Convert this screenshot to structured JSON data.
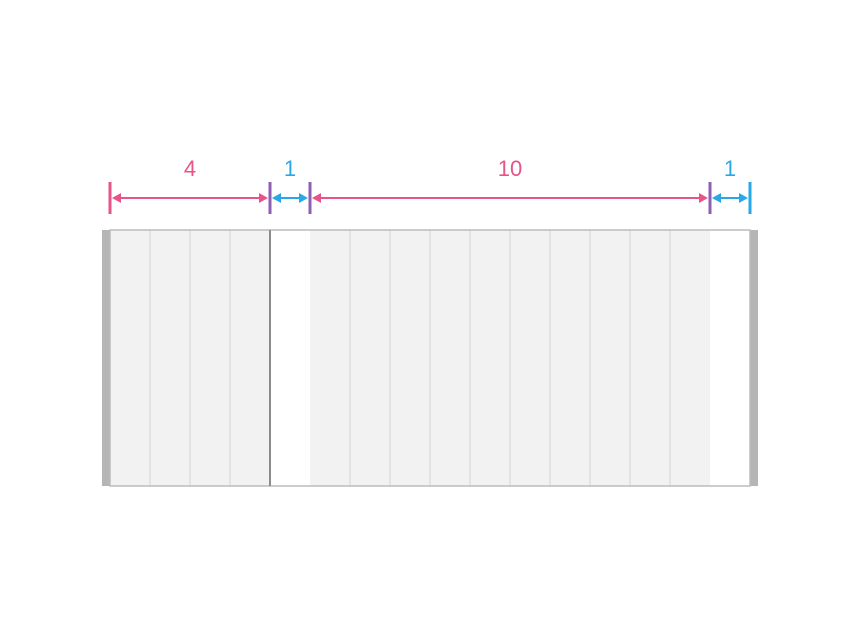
{
  "grid": {
    "total_columns": 16,
    "shaded_fill": "#f2f2f2",
    "gap_fill": "#ffffff",
    "column_line": "#dcdcdc",
    "frame_stroke": "#bcbcbc",
    "side_bar_fill": "#b5b5b5",
    "divider_stroke": "#8c8c8c"
  },
  "spans": [
    {
      "label": "4",
      "columns": 4,
      "kind": "content",
      "color": "#e8538a"
    },
    {
      "label": "1",
      "columns": 1,
      "kind": "gutter",
      "color": "#29a8e8"
    },
    {
      "label": "10",
      "columns": 10,
      "kind": "content",
      "color": "#e8538a"
    },
    {
      "label": "1",
      "columns": 1,
      "kind": "gutter",
      "color": "#29a8e8"
    }
  ],
  "colors": {
    "content_arrow": "#e8538a",
    "gutter_arrow": "#29a8e8",
    "shared_tick": "#8e5fb2"
  }
}
